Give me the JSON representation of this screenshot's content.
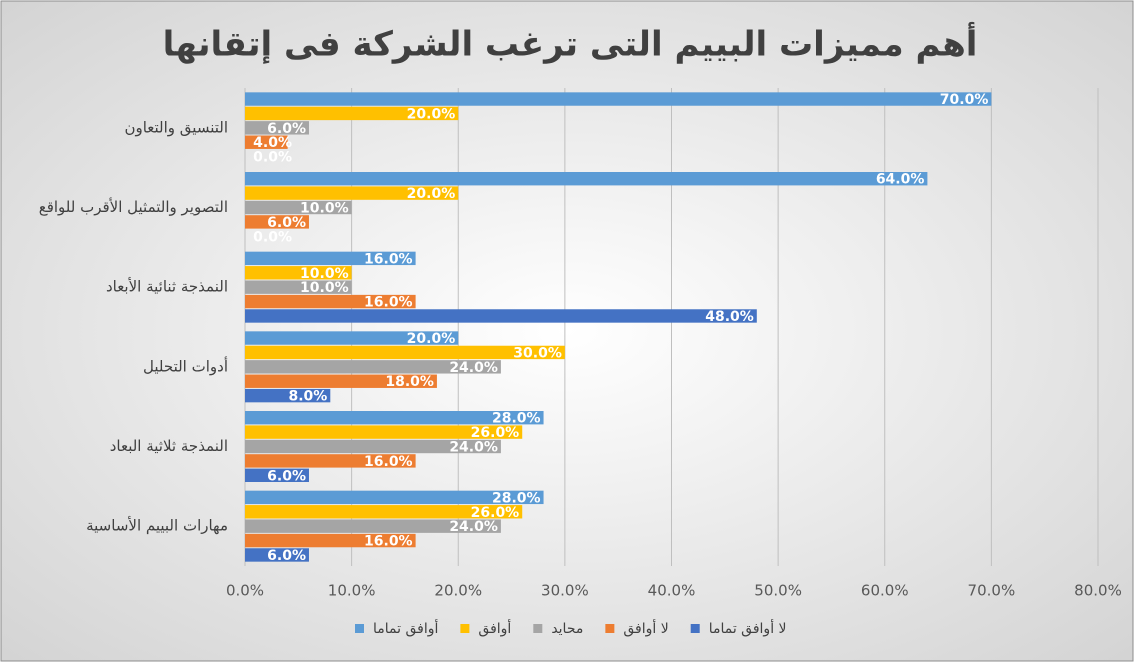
{
  "chart_data": {
    "type": "hbar",
    "title": "أهم مميزات البييم التى ترغب الشركة فى إتقانها",
    "categories": [
      "التنسيق والتعاون",
      "التصوير والتمثيل الأقرب للواقع",
      "النمذجة ثنائية الأبعاد",
      "أدوات التحليل",
      "النمذجة ثلاثية البعاد",
      "مهارات البييم الأساسية"
    ],
    "series": [
      {
        "name": "أوافق تماما",
        "color": "#5b9bd5",
        "values": [
          70,
          64,
          16,
          20,
          28,
          28
        ],
        "value_labels": [
          "70.0%",
          "64.0%",
          "16.0%",
          "20.0%",
          "28.0%",
          "28.0%"
        ]
      },
      {
        "name": "أوافق",
        "color": "#ffc000",
        "values": [
          20,
          20,
          10,
          30,
          26,
          26
        ],
        "value_labels": [
          "20.0%",
          "20.0%",
          "10.0%",
          "30.0%",
          "26.0%",
          "26.0%"
        ]
      },
      {
        "name": "محايد",
        "color": "#a5a5a5",
        "values": [
          6,
          10,
          10,
          24,
          24,
          24
        ],
        "value_labels": [
          "6.0%",
          "10.0%",
          "10.0%",
          "24.0%",
          "24.0%",
          "24.0%"
        ]
      },
      {
        "name": "لا أوافق",
        "color": "#ed7d31",
        "values": [
          4,
          6,
          16,
          18,
          16,
          16
        ],
        "value_labels": [
          "4.0%",
          "6.0%",
          "16.0%",
          "18.0%",
          "16.0%",
          "16.0%"
        ]
      },
      {
        "name": "لا أوافق تماما",
        "color": "#4472c4",
        "values": [
          0,
          0,
          48,
          8,
          6,
          6
        ],
        "value_labels": [
          "0.0%",
          "0.0%",
          "48.0%",
          "8.0%",
          "6.0%",
          "6.0%"
        ]
      }
    ],
    "xlim": [
      0,
      80
    ],
    "xticks": [
      {
        "value": 0,
        "label": "0.0%"
      },
      {
        "value": 10,
        "label": "10.0%"
      },
      {
        "value": 20,
        "label": "20.0%"
      },
      {
        "value": 30,
        "label": "30.0%"
      },
      {
        "value": 40,
        "label": "40.0%"
      },
      {
        "value": 50,
        "label": "50.0%"
      },
      {
        "value": 60,
        "label": "60.0%"
      },
      {
        "value": 70,
        "label": "70.0%"
      },
      {
        "value": 80,
        "label": "80.0%"
      }
    ],
    "grid": true,
    "legend": "bottom"
  }
}
